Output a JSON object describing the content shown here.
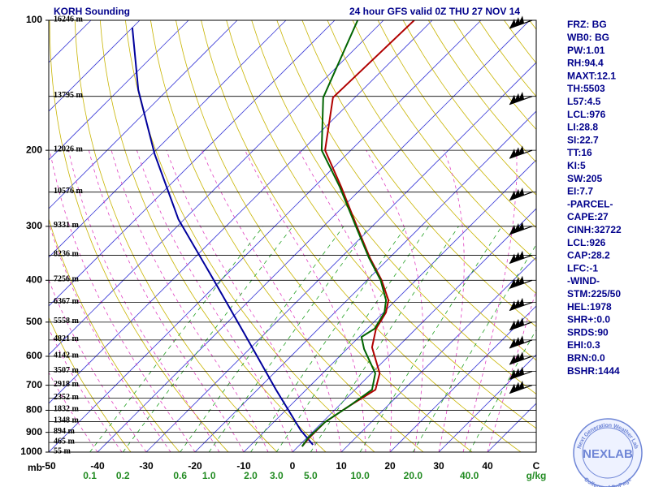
{
  "chart_data": {
    "type": "skewt",
    "title": "KORH Sounding",
    "subtitle": "24 hour GFS valid 0Z THU 27 NOV 14",
    "ylabel": "mb",
    "xlabel": "C",
    "mixing_label": "g/kg",
    "ylim": [
      1000,
      100
    ],
    "yticks": [
      100,
      200,
      300,
      400,
      500,
      600,
      700,
      800,
      900,
      1000
    ],
    "log_y": true,
    "xlim": [
      -50,
      50
    ],
    "xticks": [
      -50,
      -40,
      -30,
      -20,
      -10,
      0,
      10,
      20,
      30,
      40
    ],
    "mixing_ratios": [
      {
        "value": 0.1,
        "label": "0.1"
      },
      {
        "value": 0.2,
        "label": "0.2"
      },
      {
        "value": 0.6,
        "label": "0.6"
      },
      {
        "value": 1.0,
        "label": "1.0"
      },
      {
        "value": 2.0,
        "label": "2.0"
      },
      {
        "value": 3.0,
        "label": "3.0"
      },
      {
        "value": 5.0,
        "label": "5.0"
      },
      {
        "value": 10.0,
        "label": "10.0"
      },
      {
        "value": 20.0,
        "label": "20.0"
      },
      {
        "value": 40.0,
        "label": "40.0"
      }
    ],
    "height_levels": {
      "pressure": [
        100,
        150,
        200,
        250,
        300,
        350,
        400,
        450,
        500,
        550,
        600,
        650,
        700,
        750,
        800,
        850,
        900,
        950,
        1000
      ],
      "labels": [
        "16246 m",
        "13795 m",
        "12026 m",
        "10576 m",
        "9331 m",
        "8236 m",
        "7256 m",
        "6367 m",
        "5558 m",
        "4821 m",
        "4142 m",
        "3507 m",
        "2918 m",
        "2352 m",
        "1832 m",
        "1348 m",
        "894 m",
        "465 m",
        "55 m"
      ]
    },
    "series": [
      {
        "color": "#00009c",
        "pressure": [
          962,
          890,
          717,
          529,
          391,
          289,
          204,
          145,
          104
        ],
        "temperature": [
          2.7,
          -2.8,
          -16.2,
          -34.5,
          -52.8,
          -71.2,
          -89.5,
          -106,
          -120
        ]
      },
      {
        "color": "#b00000",
        "pressure": [
          970,
          929,
          852,
          781,
          717,
          657,
          572,
          518,
          475,
          445,
          400,
          355,
          302,
          243,
          200,
          151,
          100
        ],
        "temperature": [
          0.8,
          0.5,
          0.5,
          2.2,
          4.2,
          1.7,
          -5.2,
          -8.2,
          -9.5,
          -11.5,
          -17,
          -24,
          -32.8,
          -44.5,
          -55.3,
          -64.5,
          -63.7
        ]
      },
      {
        "color": "#006400",
        "pressure": [
          970,
          929,
          852,
          781,
          717,
          657,
          577,
          541,
          518,
          475,
          445,
          400,
          355,
          302,
          243,
          200,
          151,
          100
        ],
        "temperature": [
          0.8,
          0.3,
          0.5,
          2.2,
          3.5,
          0.8,
          -6.5,
          -9.5,
          -8.5,
          -9.8,
          -12,
          -17.2,
          -24.2,
          -33,
          -44.8,
          -56,
          -66.5,
          -75.3
        ]
      }
    ],
    "wind_pressures": [
      100,
      150,
      200,
      250,
      300,
      350,
      400,
      450,
      500,
      550,
      600,
      650,
      700
    ],
    "indices": [
      "FRZ: BG",
      "WB0: BG",
      "PW:1.01",
      "RH:94.4",
      "MAXT:12.1",
      "TH:5503",
      "L57:4.5",
      "LCL:976",
      "LI:28.8",
      "SI:22.7",
      "TT:16",
      "KI:5",
      "SW:205",
      "EI:7.7",
      "-PARCEL-",
      "CAPE:27",
      "CINH:32722",
      "LCL:926",
      "CAP:28.2",
      "LFC:-1",
      "-WIND-",
      "STM:225/50",
      "HEL:1978",
      "SHR+:0.0",
      "SRDS:90",
      "EHI:0.3",
      "BRN:0.0",
      "BSHR:1444"
    ],
    "logo": {
      "name": "NEXLAB",
      "ring_top": "Next Generation Weather Lab",
      "ring_bottom": "College of DuPage"
    }
  }
}
